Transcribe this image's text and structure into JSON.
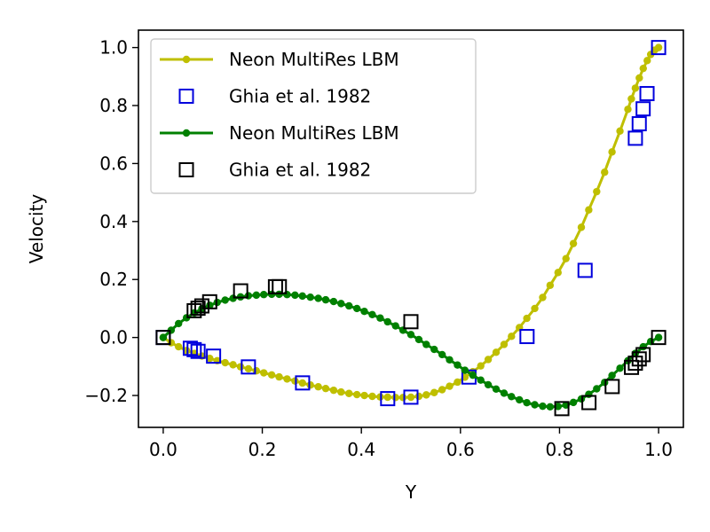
{
  "chart_data": {
    "type": "line",
    "title": "",
    "xlabel": "Y",
    "ylabel": "Velocity",
    "xlim": [
      -0.05,
      1.05
    ],
    "ylim": [
      -0.31,
      1.06
    ],
    "xticks": [
      0.0,
      0.2,
      0.4,
      0.6,
      0.8,
      1.0
    ],
    "xtick_labels": [
      "0.0",
      "0.2",
      "0.4",
      "0.6",
      "0.8",
      "1.0"
    ],
    "yticks": [
      -0.2,
      0.0,
      0.2,
      0.4,
      0.6,
      0.8,
      1.0
    ],
    "ytick_labels": [
      "−0.2",
      "0.0",
      "0.2",
      "0.4",
      "0.6",
      "0.8",
      "1.0"
    ],
    "grid": false,
    "legend_position": "top-left",
    "series": [
      {
        "name": "Neon MultiRes LBM",
        "kind": "line-marker",
        "color": "#bfbf00",
        "x": [
          0.0,
          0.016,
          0.031,
          0.047,
          0.063,
          0.078,
          0.094,
          0.109,
          0.125,
          0.141,
          0.156,
          0.172,
          0.188,
          0.203,
          0.219,
          0.234,
          0.25,
          0.266,
          0.281,
          0.297,
          0.313,
          0.328,
          0.344,
          0.359,
          0.375,
          0.391,
          0.406,
          0.422,
          0.438,
          0.453,
          0.469,
          0.484,
          0.5,
          0.516,
          0.531,
          0.547,
          0.563,
          0.578,
          0.594,
          0.609,
          0.625,
          0.641,
          0.656,
          0.672,
          0.688,
          0.703,
          0.719,
          0.734,
          0.75,
          0.766,
          0.781,
          0.797,
          0.813,
          0.828,
          0.844,
          0.859,
          0.875,
          0.891,
          0.906,
          0.922,
          0.938,
          0.945,
          0.953,
          0.961,
          0.969,
          0.977,
          0.984,
          0.992,
          1.0
        ],
        "y": [
          0.0,
          -0.018,
          -0.032,
          -0.045,
          -0.055,
          -0.064,
          -0.072,
          -0.08,
          -0.087,
          -0.094,
          -0.101,
          -0.108,
          -0.115,
          -0.122,
          -0.129,
          -0.136,
          -0.143,
          -0.15,
          -0.157,
          -0.164,
          -0.17,
          -0.176,
          -0.182,
          -0.188,
          -0.193,
          -0.197,
          -0.2,
          -0.203,
          -0.205,
          -0.206,
          -0.207,
          -0.207,
          -0.206,
          -0.203,
          -0.198,
          -0.19,
          -0.18,
          -0.168,
          -0.154,
          -0.137,
          -0.118,
          -0.098,
          -0.076,
          -0.051,
          -0.024,
          0.004,
          0.034,
          0.066,
          0.1,
          0.138,
          0.18,
          0.224,
          0.272,
          0.324,
          0.38,
          0.44,
          0.503,
          0.57,
          0.64,
          0.712,
          0.787,
          0.823,
          0.86,
          0.895,
          0.928,
          0.955,
          0.976,
          0.991,
          1.0
        ]
      },
      {
        "name": "Ghia et al. 1982",
        "kind": "marker",
        "color": "#0000dd",
        "x": [
          0.0,
          0.0547,
          0.0625,
          0.0703,
          0.1016,
          0.1719,
          0.2813,
          0.4531,
          0.5,
          0.6172,
          0.7344,
          0.8516,
          0.9531,
          0.9609,
          0.9688,
          0.9766,
          1.0
        ],
        "y": [
          0.0,
          -0.03717,
          -0.04192,
          -0.04775,
          -0.06434,
          -0.1015,
          -0.15662,
          -0.2109,
          -0.20581,
          -0.13641,
          0.00332,
          0.23151,
          0.68717,
          0.73722,
          0.78871,
          0.84123,
          1.0
        ]
      },
      {
        "name": "Neon MultiRes LBM",
        "kind": "line-marker",
        "color": "#008000",
        "x": [
          0.0,
          0.016,
          0.031,
          0.047,
          0.063,
          0.078,
          0.094,
          0.109,
          0.125,
          0.141,
          0.156,
          0.172,
          0.188,
          0.203,
          0.219,
          0.234,
          0.25,
          0.266,
          0.281,
          0.297,
          0.313,
          0.328,
          0.344,
          0.359,
          0.375,
          0.391,
          0.406,
          0.422,
          0.438,
          0.453,
          0.469,
          0.484,
          0.5,
          0.516,
          0.531,
          0.547,
          0.563,
          0.578,
          0.594,
          0.609,
          0.625,
          0.641,
          0.656,
          0.672,
          0.688,
          0.703,
          0.719,
          0.734,
          0.75,
          0.766,
          0.781,
          0.797,
          0.813,
          0.828,
          0.844,
          0.859,
          0.875,
          0.891,
          0.906,
          0.922,
          0.938,
          0.953,
          0.969,
          0.984,
          1.0
        ],
        "y": [
          0.0,
          0.025,
          0.048,
          0.068,
          0.085,
          0.099,
          0.111,
          0.121,
          0.129,
          0.135,
          0.14,
          0.144,
          0.146,
          0.148,
          0.149,
          0.149,
          0.148,
          0.146,
          0.143,
          0.139,
          0.135,
          0.13,
          0.124,
          0.117,
          0.109,
          0.1,
          0.09,
          0.079,
          0.067,
          0.054,
          0.04,
          0.025,
          0.01,
          -0.007,
          -0.024,
          -0.041,
          -0.059,
          -0.077,
          -0.095,
          -0.113,
          -0.13,
          -0.147,
          -0.163,
          -0.178,
          -0.192,
          -0.204,
          -0.215,
          -0.225,
          -0.232,
          -0.237,
          -0.239,
          -0.238,
          -0.233,
          -0.224,
          -0.212,
          -0.196,
          -0.177,
          -0.155,
          -0.131,
          -0.106,
          -0.08,
          -0.055,
          -0.032,
          -0.014,
          0.0
        ]
      },
      {
        "name": "Ghia et al. 1982",
        "kind": "marker",
        "color": "#000000",
        "x": [
          0.0,
          0.0625,
          0.0703,
          0.0781,
          0.0938,
          0.1563,
          0.2266,
          0.2344,
          0.5,
          0.8047,
          0.8594,
          0.9063,
          0.9453,
          0.9531,
          0.9609,
          0.9688,
          1.0
        ],
        "y": [
          0.0,
          0.09233,
          0.10091,
          0.1089,
          0.12317,
          0.16077,
          0.17507,
          0.17527,
          0.05454,
          -0.24533,
          -0.22445,
          -0.16914,
          -0.10313,
          -0.08864,
          -0.07391,
          -0.05906,
          0.0
        ]
      }
    ]
  }
}
